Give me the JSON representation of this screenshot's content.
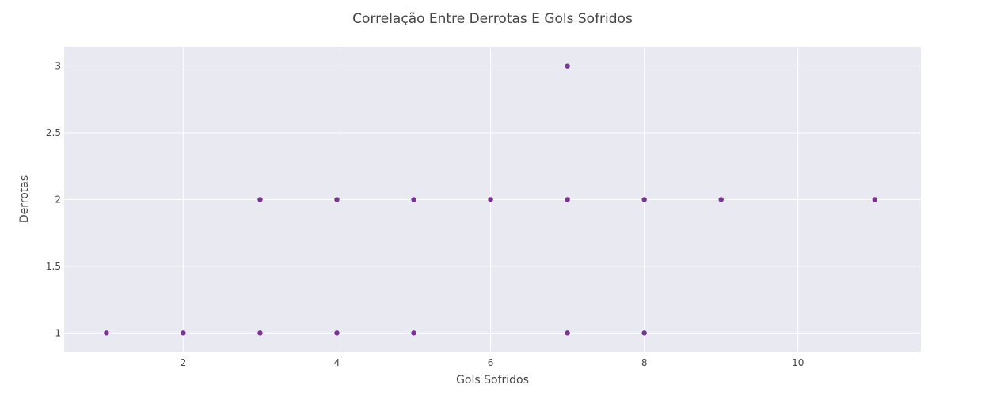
{
  "chart_data": {
    "type": "scatter",
    "title": "Correlação Entre Derrotas E Gols Sofridos",
    "xlabel": "Gols Sofridos",
    "ylabel": "Derrotas",
    "xlim": [
      0.45,
      11.6
    ],
    "ylim": [
      0.86,
      3.14
    ],
    "x_ticks": [
      2,
      4,
      6,
      8,
      10
    ],
    "x_tick_labels": [
      "2",
      "4",
      "6",
      "8",
      "10"
    ],
    "y_ticks": [
      1,
      1.5,
      2,
      2.5,
      3
    ],
    "y_tick_labels": [
      "1",
      "1.5",
      "2",
      "2.5",
      "3"
    ],
    "grid": true,
    "series": [
      {
        "name": "Derrotas",
        "color": "#7b3294",
        "points": [
          {
            "x": 1,
            "y": 1
          },
          {
            "x": 2,
            "y": 1
          },
          {
            "x": 3,
            "y": 1
          },
          {
            "x": 3,
            "y": 2
          },
          {
            "x": 4,
            "y": 1
          },
          {
            "x": 4,
            "y": 2
          },
          {
            "x": 5,
            "y": 1
          },
          {
            "x": 5,
            "y": 2
          },
          {
            "x": 6,
            "y": 2
          },
          {
            "x": 7,
            "y": 1
          },
          {
            "x": 7,
            "y": 2
          },
          {
            "x": 7,
            "y": 3
          },
          {
            "x": 8,
            "y": 1
          },
          {
            "x": 8,
            "y": 2
          },
          {
            "x": 9,
            "y": 2
          },
          {
            "x": 11,
            "y": 2
          }
        ]
      }
    ],
    "colors": {
      "plot_background": "#e9e9f2",
      "marker": "#7b3294"
    }
  }
}
